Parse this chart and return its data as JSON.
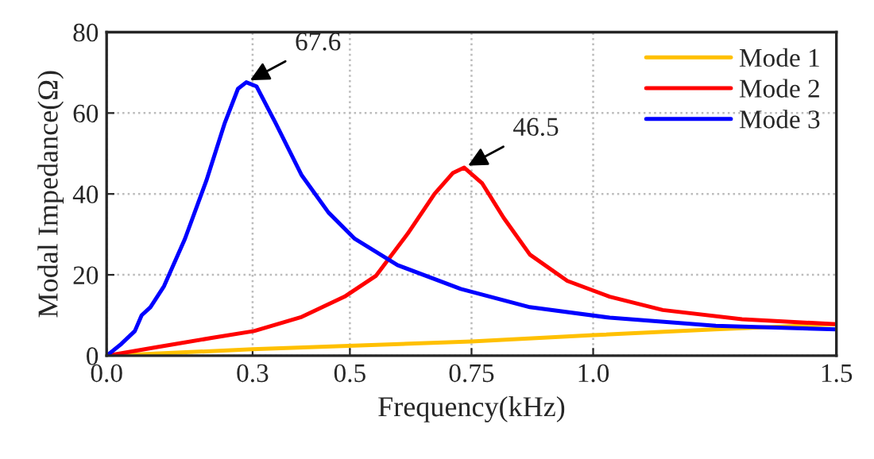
{
  "chart_data": {
    "type": "line",
    "xlabel": "Frequency(kHz)",
    "ylabel": "Modal Impedance(Ω)",
    "xlim": [
      0,
      1.5
    ],
    "ylim": [
      0,
      80
    ],
    "xticks": [
      {
        "value": 0,
        "label": "0.0"
      },
      0.3,
      0.5,
      0.75,
      {
        "value": 1,
        "label": "1.0"
      },
      1.5
    ],
    "yticks": [
      0,
      20,
      40,
      60,
      80
    ],
    "grid": true,
    "legend": "top right",
    "line_style": "solid",
    "marker": "none",
    "series": [
      {
        "name": "Mode 1",
        "color": "#ffc000",
        "x": [
          0,
          0.3,
          0.75,
          1.0,
          1.25,
          1.5
        ],
        "values": [
          0,
          1.6,
          3.5,
          5.1,
          6.5,
          7.8
        ]
      },
      {
        "name": "Mode 2",
        "color": "#ff0000",
        "x": [
          0,
          0.107,
          0.216,
          0.303,
          0.401,
          0.489,
          0.554,
          0.619,
          0.674,
          0.712,
          0.735,
          0.772,
          0.816,
          0.87,
          0.947,
          1.034,
          1.143,
          1.306,
          1.5
        ],
        "values": [
          0,
          2.2,
          4.4,
          6.1,
          9.6,
          14.6,
          19.8,
          30.2,
          40,
          45.2,
          46.5,
          42.6,
          34.1,
          25,
          18.5,
          14.6,
          11.3,
          9,
          7.8
        ]
      },
      {
        "name": "Mode 3",
        "color": "#0000ff",
        "x": [
          0,
          0.03,
          0.058,
          0.072,
          0.09,
          0.118,
          0.161,
          0.205,
          0.243,
          0.27,
          0.287,
          0.308,
          0.347,
          0.401,
          0.456,
          0.51,
          0.598,
          0.728,
          0.87,
          1.034,
          1.252,
          1.5
        ],
        "values": [
          0,
          2.9,
          6.1,
          10,
          12,
          17.2,
          28.9,
          43.3,
          57.6,
          66,
          67.6,
          66.6,
          57.6,
          44.6,
          35.4,
          28.9,
          22.4,
          16.5,
          12,
          9.4,
          7.4,
          6.5
        ]
      }
    ],
    "annotations": [
      {
        "text": "67.6",
        "x": 0.287,
        "y": 67.6
      },
      {
        "text": "46.5",
        "x": 0.735,
        "y": 46.5
      }
    ]
  }
}
